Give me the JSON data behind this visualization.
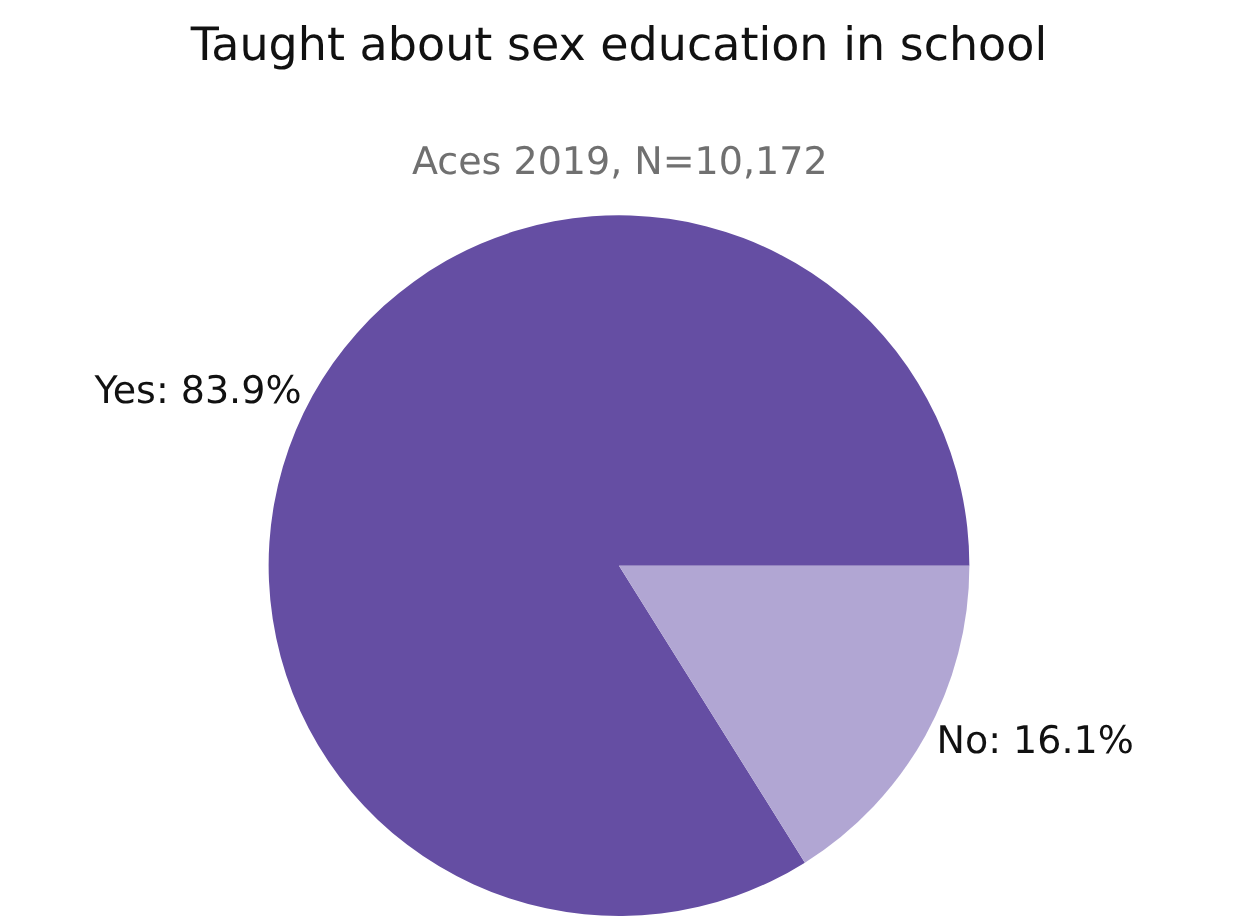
{
  "chart_data": {
    "type": "pie",
    "title": "Taught about sex education in school",
    "subtitle": "Aces 2019, N=10,172",
    "categories": [
      "Yes",
      "No"
    ],
    "values": [
      83.9,
      16.1
    ],
    "colors": [
      "#654ea3",
      "#b1a6d3"
    ],
    "value_labels": [
      "83.9%",
      "16.1%"
    ],
    "legend": false
  }
}
